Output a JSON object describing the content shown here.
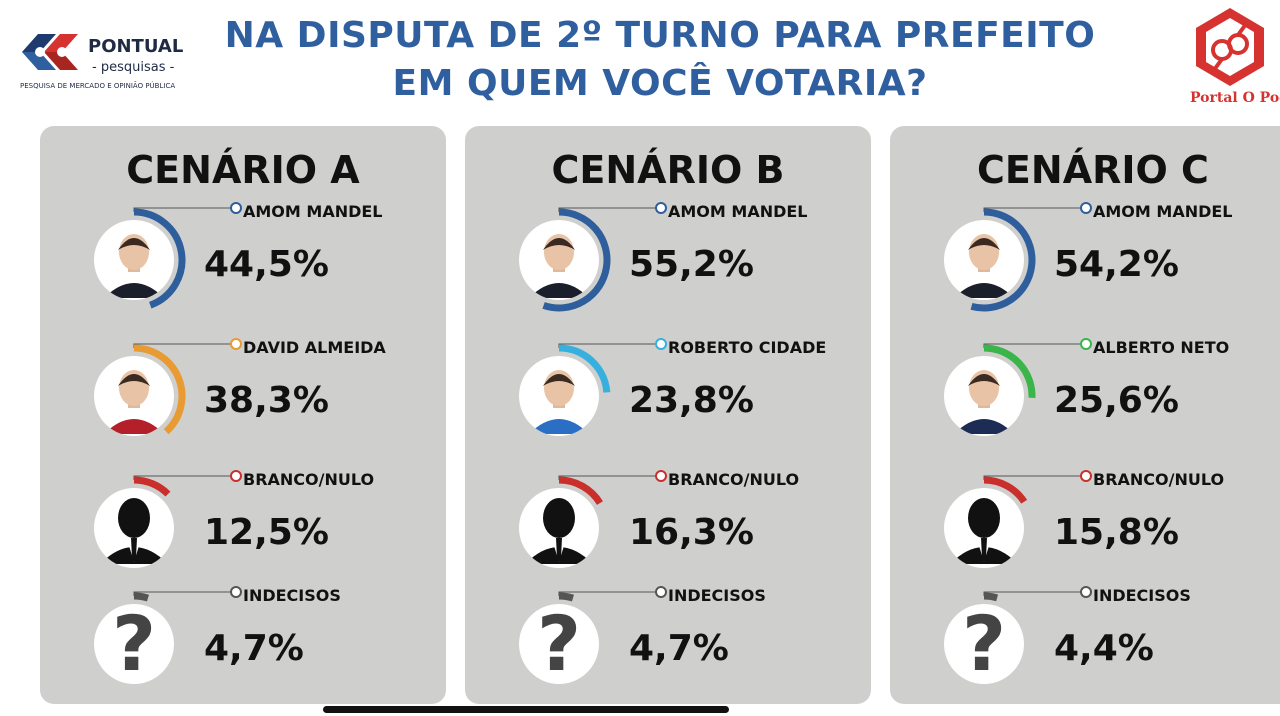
{
  "header": {
    "title_line1": "NA DISPUTA DE 2º TURNO PARA PREFEITO",
    "title_line2": "EM QUEM VOCÊ VOTARIA?"
  },
  "logo_left": {
    "brand": "PONTUAL",
    "sub": "- pesquisas -",
    "tagline": "PESQUISA DE MERCADO E OPINIÃO PÚBLICA"
  },
  "logo_right": {
    "caption": "Portal O Poder"
  },
  "colors": {
    "title": "#2f5f9e",
    "amom": "#2e5e9c",
    "david": "#e89a33",
    "roberto": "#37b0de",
    "alberto": "#39b54a",
    "branco": "#c9302c",
    "indecisos": "#555555",
    "panel": "#cfcfce"
  },
  "chart_data": [
    {
      "type": "pie",
      "title": "CENÁRIO A",
      "categories": [
        "AMOM MANDEL",
        "DAVID ALMEIDA",
        "BRANCO/NULO",
        "INDECISOS"
      ],
      "values": [
        44.5,
        38.3,
        12.5,
        4.7
      ],
      "labels": [
        "44,5%",
        "38,3%",
        "12,5%",
        "4,7%"
      ],
      "icons": [
        "candidate-photo",
        "candidate-photo",
        "silhouette-icon",
        "question-icon"
      ],
      "color_keys": [
        "amom",
        "david",
        "branco",
        "indecisos"
      ]
    },
    {
      "type": "pie",
      "title": "CENÁRIO B",
      "categories": [
        "AMOM MANDEL",
        "ROBERTO CIDADE",
        "BRANCO/NULO",
        "INDECISOS"
      ],
      "values": [
        55.2,
        23.8,
        16.3,
        4.7
      ],
      "labels": [
        "55,2%",
        "23,8%",
        "16,3%",
        "4,7%"
      ],
      "icons": [
        "candidate-photo",
        "candidate-photo",
        "silhouette-icon",
        "question-icon"
      ],
      "color_keys": [
        "amom",
        "roberto",
        "branco",
        "indecisos"
      ]
    },
    {
      "type": "pie",
      "title": "CENÁRIO C",
      "categories": [
        "AMOM MANDEL",
        "ALBERTO NETO",
        "BRANCO/NULO",
        "INDECISOS"
      ],
      "values": [
        54.2,
        25.6,
        15.8,
        4.4
      ],
      "labels": [
        "54,2%",
        "25,6%",
        "15,8%",
        "4,4%"
      ],
      "icons": [
        "candidate-photo",
        "candidate-photo",
        "silhouette-icon",
        "question-icon"
      ],
      "color_keys": [
        "amom",
        "alberto",
        "branco",
        "indecisos"
      ]
    }
  ]
}
